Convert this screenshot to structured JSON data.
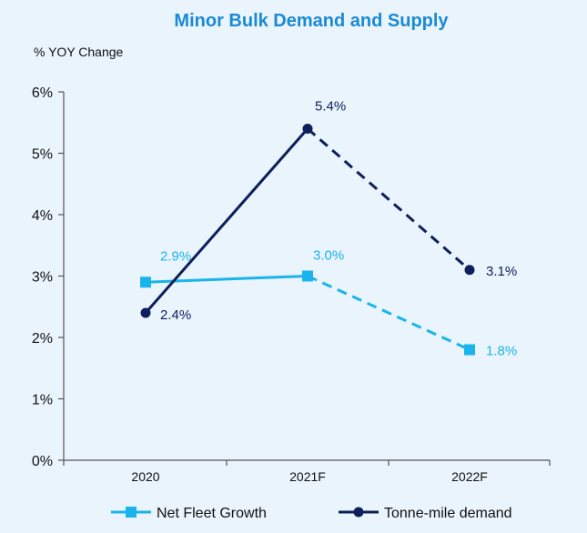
{
  "chart_data": {
    "type": "line",
    "title": "Minor Bulk Demand and Supply",
    "ylabel": "% YOY Change",
    "xlabel": "",
    "categories": [
      "2020",
      "2021F",
      "2022F"
    ],
    "ylim": [
      0,
      6
    ],
    "yticks": [
      0,
      1,
      2,
      3,
      4,
      5,
      6
    ],
    "ytick_labels": [
      "0%",
      "1%",
      "2%",
      "3%",
      "4%",
      "5%",
      "6%"
    ],
    "grid": false,
    "legend_position": "bottom",
    "series": [
      {
        "name": "Net Fleet Growth",
        "values": [
          2.9,
          3.0,
          1.8
        ],
        "labels": [
          "2.9%",
          "3.0%",
          "1.8%"
        ],
        "color": "#1ab4ec",
        "marker": "square",
        "dashed_from_index": 1
      },
      {
        "name": "Tonne-mile demand",
        "values": [
          2.4,
          5.4,
          3.1
        ],
        "labels": [
          "2.4%",
          "5.4%",
          "3.1%"
        ],
        "color": "#0d1f5c",
        "marker": "circle",
        "dashed_from_index": 1
      }
    ]
  }
}
